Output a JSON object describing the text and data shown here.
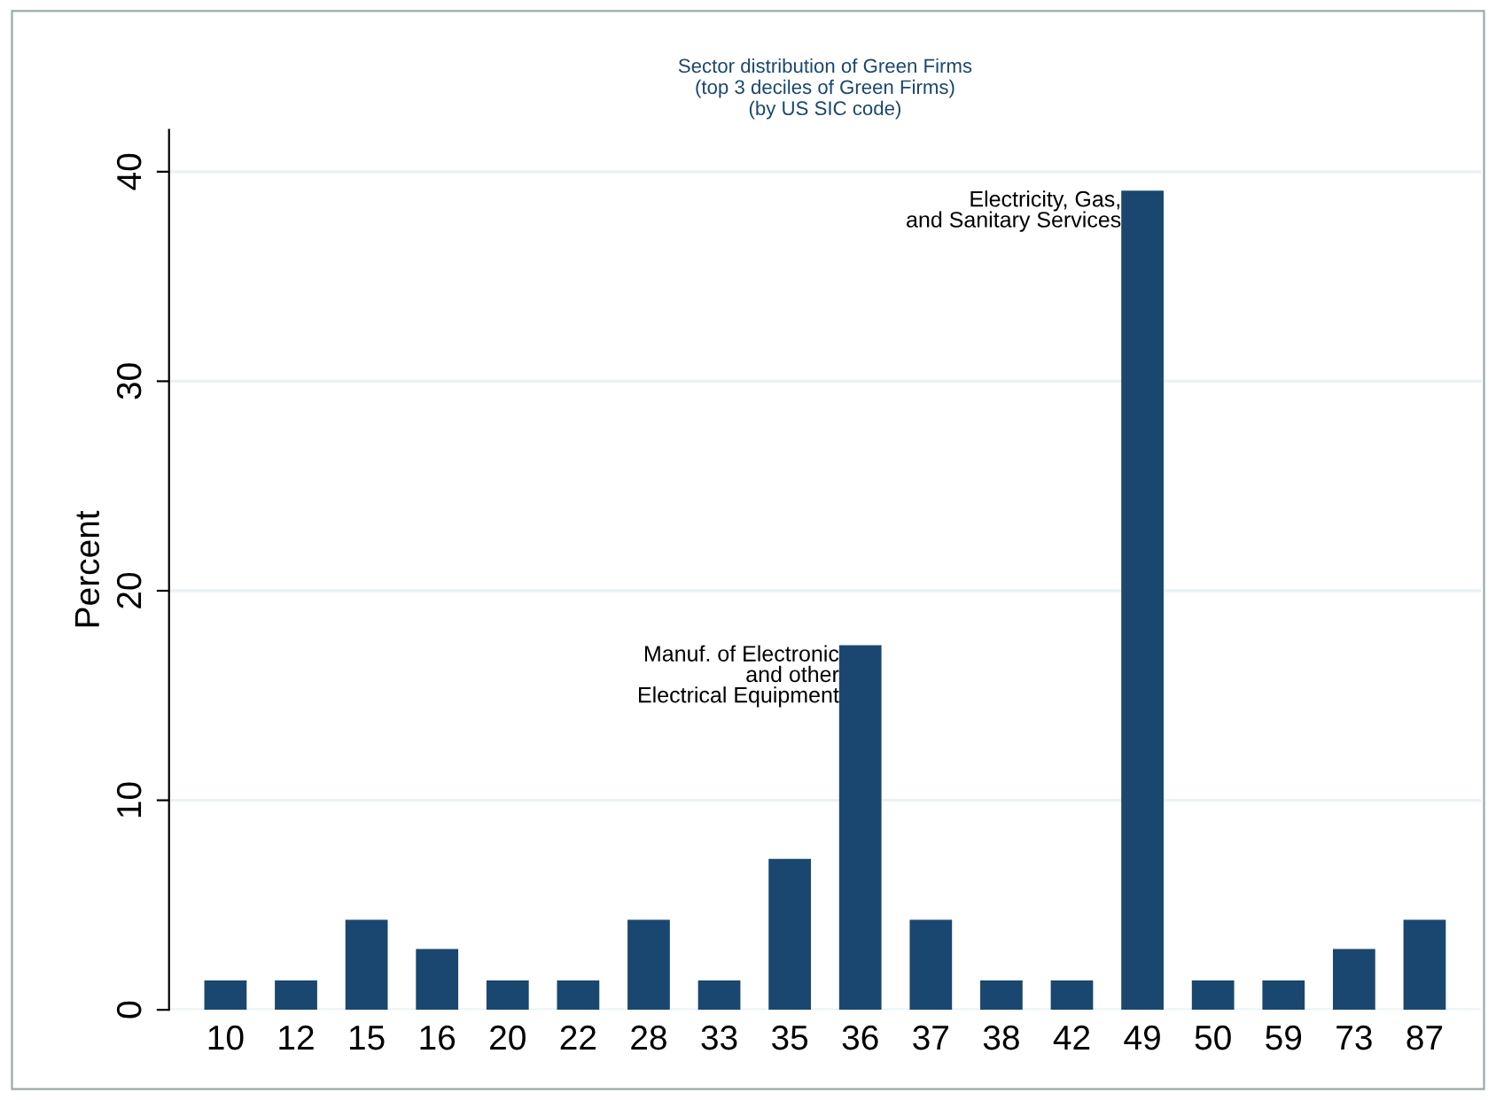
{
  "chart_data": {
    "type": "bar",
    "title": "Sector distribution of Green Firms\n(top 3 deciles of Green Firms)\n(by US SIC code)",
    "ylabel": "Percent",
    "categories": [
      "10",
      "12",
      "15",
      "16",
      "20",
      "22",
      "28",
      "33",
      "35",
      "36",
      "37",
      "38",
      "42",
      "49",
      "50",
      "59",
      "73",
      "87"
    ],
    "values": [
      1.4,
      1.4,
      4.3,
      2.9,
      1.4,
      1.4,
      4.3,
      1.4,
      7.2,
      17.4,
      4.3,
      1.4,
      1.4,
      39.1,
      1.4,
      1.4,
      2.9,
      4.3
    ],
    "color": "#1a476f",
    "ylim": [
      0,
      42
    ],
    "yticks": [
      0,
      10,
      20,
      30,
      40
    ],
    "grid": "y",
    "annotations": [
      {
        "text": "Manuf. of Electronic\nand other\nElectrical Equipment",
        "x": "36",
        "y": 17.4
      },
      {
        "text": "Electricity, Gas,\nand Sanitary Services",
        "x": "49",
        "y": 39.1
      }
    ]
  }
}
